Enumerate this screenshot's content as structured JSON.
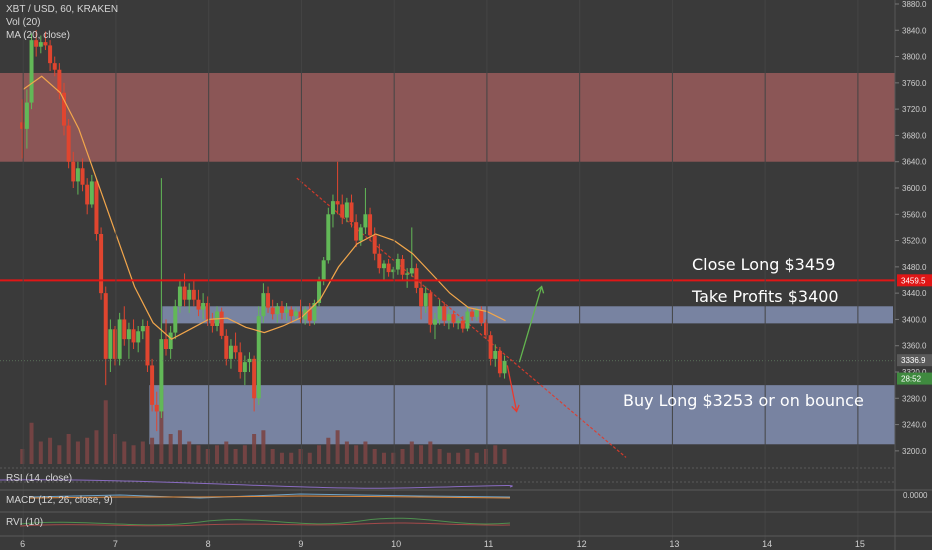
{
  "header": {
    "symbol_line": "XBT / USD, 60, KRAKEN",
    "vol_line": "Vol (20)",
    "ma_line": "MA (20, close)"
  },
  "indicators": {
    "rsi": "RSI (14, close)",
    "macd": "MACD (12, 26, close, 9)",
    "macd_value": "0.0000",
    "rvi": "RVI (10)"
  },
  "annotations": {
    "close_long": "Close Long $3459",
    "take_profits": "Take Profits $3400",
    "buy_long": "Buy Long $3253 or on bounce"
  },
  "price_tags": {
    "red_line": "3459.5",
    "last_price": "3336.9",
    "countdown": "28:52"
  },
  "colors": {
    "background": "#3a3a3a",
    "resistance_zone": "#8b5656",
    "support_zone": "#7b87a6",
    "bull": "#62b857",
    "bear": "#e0452f",
    "ma": "#f2a64b",
    "red_line": "#e01616",
    "arrow_up": "#63b54f",
    "arrow_down": "#e83a2e"
  },
  "chart_data": {
    "type": "candlestick",
    "ylim": [
      3180,
      3880
    ],
    "y_ticks": [
      "3880.0",
      "3840.0",
      "3800.0",
      "3760.0",
      "3720.0",
      "3680.0",
      "3640.0",
      "3600.0",
      "3560.0",
      "3520.0",
      "3480.0",
      "3440.0",
      "3400.0",
      "3360.0",
      "3320.0",
      "3280.0",
      "3240.0",
      "3200.0"
    ],
    "x_ticks": [
      "6",
      "7",
      "8",
      "9",
      "10",
      "11",
      "12",
      "13",
      "14",
      "15"
    ],
    "horizontal_line": 3459.5,
    "zones": [
      {
        "name": "resistance",
        "from": 3640,
        "to": 3775
      },
      {
        "name": "take-profit",
        "from": 3394,
        "to": 3420
      },
      {
        "name": "buy",
        "from": 3210,
        "to": 3300
      }
    ],
    "candles": [
      {
        "x": 5.99,
        "o": 3700,
        "h": 3735,
        "l": 3645,
        "c": 3690
      },
      {
        "x": 6.04,
        "o": 3690,
        "h": 3750,
        "l": 3660,
        "c": 3730
      },
      {
        "x": 6.09,
        "o": 3730,
        "h": 3835,
        "l": 3720,
        "c": 3825
      },
      {
        "x": 6.14,
        "o": 3825,
        "h": 3840,
        "l": 3800,
        "c": 3815
      },
      {
        "x": 6.19,
        "o": 3815,
        "h": 3832,
        "l": 3805,
        "c": 3822
      },
      {
        "x": 6.24,
        "o": 3822,
        "h": 3838,
        "l": 3810,
        "c": 3817
      },
      {
        "x": 6.29,
        "o": 3817,
        "h": 3825,
        "l": 3778,
        "c": 3790
      },
      {
        "x": 6.34,
        "o": 3790,
        "h": 3800,
        "l": 3770,
        "c": 3780
      },
      {
        "x": 6.39,
        "o": 3780,
        "h": 3790,
        "l": 3735,
        "c": 3745
      },
      {
        "x": 6.44,
        "o": 3745,
        "h": 3760,
        "l": 3680,
        "c": 3695
      },
      {
        "x": 6.49,
        "o": 3695,
        "h": 3705,
        "l": 3630,
        "c": 3640
      },
      {
        "x": 6.54,
        "o": 3640,
        "h": 3655,
        "l": 3600,
        "c": 3610
      },
      {
        "x": 6.59,
        "o": 3610,
        "h": 3640,
        "l": 3590,
        "c": 3630
      },
      {
        "x": 6.64,
        "o": 3630,
        "h": 3645,
        "l": 3595,
        "c": 3605
      },
      {
        "x": 6.69,
        "o": 3605,
        "h": 3615,
        "l": 3560,
        "c": 3575
      },
      {
        "x": 6.74,
        "o": 3575,
        "h": 3620,
        "l": 3570,
        "c": 3610
      },
      {
        "x": 6.79,
        "o": 3610,
        "h": 3615,
        "l": 3520,
        "c": 3530
      },
      {
        "x": 6.84,
        "o": 3530,
        "h": 3540,
        "l": 3430,
        "c": 3440
      },
      {
        "x": 6.89,
        "o": 3440,
        "h": 3450,
        "l": 3300,
        "c": 3340
      },
      {
        "x": 6.94,
        "o": 3340,
        "h": 3400,
        "l": 3320,
        "c": 3385
      },
      {
        "x": 6.99,
        "o": 3385,
        "h": 3390,
        "l": 3330,
        "c": 3340
      },
      {
        "x": 7.04,
        "o": 3340,
        "h": 3410,
        "l": 3330,
        "c": 3400
      },
      {
        "x": 7.09,
        "o": 3400,
        "h": 3420,
        "l": 3360,
        "c": 3370
      },
      {
        "x": 7.14,
        "o": 3370,
        "h": 3395,
        "l": 3340,
        "c": 3385
      },
      {
        "x": 7.19,
        "o": 3385,
        "h": 3400,
        "l": 3355,
        "c": 3365
      },
      {
        "x": 7.24,
        "o": 3365,
        "h": 3390,
        "l": 3350,
        "c": 3382
      },
      {
        "x": 7.29,
        "o": 3382,
        "h": 3400,
        "l": 3370,
        "c": 3390
      },
      {
        "x": 7.34,
        "o": 3390,
        "h": 3398,
        "l": 3320,
        "c": 3330
      },
      {
        "x": 7.39,
        "o": 3330,
        "h": 3340,
        "l": 3260,
        "c": 3270
      },
      {
        "x": 7.44,
        "o": 3270,
        "h": 3290,
        "l": 3230,
        "c": 3260
      },
      {
        "x": 7.49,
        "o": 3260,
        "h": 3615,
        "l": 3250,
        "c": 3370
      },
      {
        "x": 7.54,
        "o": 3370,
        "h": 3400,
        "l": 3345,
        "c": 3355
      },
      {
        "x": 7.59,
        "o": 3355,
        "h": 3390,
        "l": 3340,
        "c": 3380
      },
      {
        "x": 7.64,
        "o": 3380,
        "h": 3430,
        "l": 3370,
        "c": 3420
      },
      {
        "x": 7.69,
        "o": 3420,
        "h": 3460,
        "l": 3410,
        "c": 3450
      },
      {
        "x": 7.74,
        "o": 3450,
        "h": 3470,
        "l": 3420,
        "c": 3430
      },
      {
        "x": 7.79,
        "o": 3430,
        "h": 3455,
        "l": 3410,
        "c": 3445
      },
      {
        "x": 7.84,
        "o": 3445,
        "h": 3460,
        "l": 3420,
        "c": 3430
      },
      {
        "x": 7.89,
        "o": 3430,
        "h": 3445,
        "l": 3405,
        "c": 3415
      },
      {
        "x": 7.94,
        "o": 3415,
        "h": 3440,
        "l": 3400,
        "c": 3425
      },
      {
        "x": 7.99,
        "o": 3425,
        "h": 3435,
        "l": 3390,
        "c": 3400
      },
      {
        "x": 8.04,
        "o": 3400,
        "h": 3410,
        "l": 3380,
        "c": 3390
      },
      {
        "x": 8.09,
        "o": 3390,
        "h": 3420,
        "l": 3382,
        "c": 3412
      },
      {
        "x": 8.14,
        "o": 3412,
        "h": 3418,
        "l": 3370,
        "c": 3375
      },
      {
        "x": 8.19,
        "o": 3375,
        "h": 3385,
        "l": 3330,
        "c": 3340
      },
      {
        "x": 8.24,
        "o": 3340,
        "h": 3370,
        "l": 3325,
        "c": 3360
      },
      {
        "x": 8.29,
        "o": 3360,
        "h": 3380,
        "l": 3340,
        "c": 3350
      },
      {
        "x": 8.34,
        "o": 3350,
        "h": 3365,
        "l": 3310,
        "c": 3320
      },
      {
        "x": 8.39,
        "o": 3320,
        "h": 3345,
        "l": 3300,
        "c": 3335
      },
      {
        "x": 8.44,
        "o": 3335,
        "h": 3350,
        "l": 3320,
        "c": 3340
      },
      {
        "x": 8.49,
        "o": 3340,
        "h": 3345,
        "l": 3260,
        "c": 3280
      },
      {
        "x": 8.54,
        "o": 3280,
        "h": 3420,
        "l": 3270,
        "c": 3405
      },
      {
        "x": 8.59,
        "o": 3405,
        "h": 3455,
        "l": 3395,
        "c": 3440
      },
      {
        "x": 8.64,
        "o": 3440,
        "h": 3450,
        "l": 3410,
        "c": 3418
      },
      {
        "x": 8.69,
        "o": 3418,
        "h": 3430,
        "l": 3400,
        "c": 3408
      },
      {
        "x": 8.74,
        "o": 3408,
        "h": 3425,
        "l": 3395,
        "c": 3420
      },
      {
        "x": 8.79,
        "o": 3420,
        "h": 3428,
        "l": 3400,
        "c": 3410
      },
      {
        "x": 8.84,
        "o": 3410,
        "h": 3425,
        "l": 3398,
        "c": 3415
      },
      {
        "x": 8.89,
        "o": 3415,
        "h": 3420,
        "l": 3395,
        "c": 3405
      },
      {
        "x": 8.94,
        "o": 3405,
        "h": 3418,
        "l": 3398,
        "c": 3412
      },
      {
        "x": 8.99,
        "o": 3412,
        "h": 3430,
        "l": 3395,
        "c": 3400
      },
      {
        "x": 9.04,
        "o": 3400,
        "h": 3420,
        "l": 3392,
        "c": 3415
      },
      {
        "x": 9.09,
        "o": 3415,
        "h": 3425,
        "l": 3390,
        "c": 3398
      },
      {
        "x": 9.14,
        "o": 3398,
        "h": 3430,
        "l": 3392,
        "c": 3425
      },
      {
        "x": 9.19,
        "o": 3425,
        "h": 3465,
        "l": 3420,
        "c": 3460
      },
      {
        "x": 9.24,
        "o": 3460,
        "h": 3495,
        "l": 3452,
        "c": 3490
      },
      {
        "x": 9.29,
        "o": 3490,
        "h": 3570,
        "l": 3485,
        "c": 3560
      },
      {
        "x": 9.34,
        "o": 3560,
        "h": 3590,
        "l": 3540,
        "c": 3580
      },
      {
        "x": 9.39,
        "o": 3580,
        "h": 3640,
        "l": 3560,
        "c": 3575
      },
      {
        "x": 9.44,
        "o": 3575,
        "h": 3590,
        "l": 3545,
        "c": 3555
      },
      {
        "x": 9.49,
        "o": 3555,
        "h": 3585,
        "l": 3548,
        "c": 3578
      },
      {
        "x": 9.54,
        "o": 3578,
        "h": 3590,
        "l": 3540,
        "c": 3548
      },
      {
        "x": 9.59,
        "o": 3548,
        "h": 3560,
        "l": 3510,
        "c": 3520
      },
      {
        "x": 9.64,
        "o": 3520,
        "h": 3545,
        "l": 3512,
        "c": 3540
      },
      {
        "x": 9.69,
        "o": 3540,
        "h": 3600,
        "l": 3530,
        "c": 3560
      },
      {
        "x": 9.74,
        "o": 3560,
        "h": 3570,
        "l": 3520,
        "c": 3528
      },
      {
        "x": 9.79,
        "o": 3528,
        "h": 3540,
        "l": 3490,
        "c": 3500
      },
      {
        "x": 9.84,
        "o": 3500,
        "h": 3515,
        "l": 3470,
        "c": 3478
      },
      {
        "x": 9.89,
        "o": 3478,
        "h": 3490,
        "l": 3460,
        "c": 3485
      },
      {
        "x": 9.94,
        "o": 3485,
        "h": 3492,
        "l": 3465,
        "c": 3472
      },
      {
        "x": 9.99,
        "o": 3472,
        "h": 3480,
        "l": 3462,
        "c": 3476
      },
      {
        "x": 10.04,
        "o": 3476,
        "h": 3500,
        "l": 3468,
        "c": 3492
      },
      {
        "x": 10.09,
        "o": 3492,
        "h": 3498,
        "l": 3460,
        "c": 3468
      },
      {
        "x": 10.14,
        "o": 3468,
        "h": 3478,
        "l": 3448,
        "c": 3470
      },
      {
        "x": 10.19,
        "o": 3470,
        "h": 3540,
        "l": 3465,
        "c": 3478
      },
      {
        "x": 10.24,
        "o": 3478,
        "h": 3485,
        "l": 3440,
        "c": 3448
      },
      {
        "x": 10.29,
        "o": 3448,
        "h": 3460,
        "l": 3400,
        "c": 3420
      },
      {
        "x": 10.34,
        "o": 3420,
        "h": 3450,
        "l": 3410,
        "c": 3440
      },
      {
        "x": 10.39,
        "o": 3440,
        "h": 3445,
        "l": 3380,
        "c": 3392
      },
      {
        "x": 10.44,
        "o": 3392,
        "h": 3410,
        "l": 3370,
        "c": 3400
      },
      {
        "x": 10.49,
        "o": 3400,
        "h": 3430,
        "l": 3392,
        "c": 3420
      },
      {
        "x": 10.54,
        "o": 3420,
        "h": 3426,
        "l": 3390,
        "c": 3398
      },
      {
        "x": 10.59,
        "o": 3398,
        "h": 3415,
        "l": 3385,
        "c": 3408
      },
      {
        "x": 10.64,
        "o": 3408,
        "h": 3412,
        "l": 3388,
        "c": 3395
      },
      {
        "x": 10.69,
        "o": 3395,
        "h": 3402,
        "l": 3385,
        "c": 3398
      },
      {
        "x": 10.74,
        "o": 3398,
        "h": 3405,
        "l": 3380,
        "c": 3386
      },
      {
        "x": 10.79,
        "o": 3386,
        "h": 3420,
        "l": 3382,
        "c": 3412
      },
      {
        "x": 10.84,
        "o": 3412,
        "h": 3418,
        "l": 3398,
        "c": 3404
      },
      {
        "x": 10.89,
        "o": 3404,
        "h": 3418,
        "l": 3398,
        "c": 3415
      },
      {
        "x": 10.94,
        "o": 3415,
        "h": 3420,
        "l": 3390,
        "c": 3395
      },
      {
        "x": 10.99,
        "o": 3395,
        "h": 3400,
        "l": 3370,
        "c": 3376
      },
      {
        "x": 11.04,
        "o": 3376,
        "h": 3382,
        "l": 3330,
        "c": 3340
      },
      {
        "x": 11.09,
        "o": 3340,
        "h": 3362,
        "l": 3328,
        "c": 3352
      },
      {
        "x": 11.14,
        "o": 3352,
        "h": 3358,
        "l": 3312,
        "c": 3318
      },
      {
        "x": 11.19,
        "o": 3318,
        "h": 3345,
        "l": 3310,
        "c": 3337
      }
    ],
    "ma": [
      {
        "x": 6.0,
        "y": 3750
      },
      {
        "x": 6.2,
        "y": 3770
      },
      {
        "x": 6.4,
        "y": 3745
      },
      {
        "x": 6.6,
        "y": 3690
      },
      {
        "x": 6.8,
        "y": 3610
      },
      {
        "x": 7.0,
        "y": 3530
      },
      {
        "x": 7.2,
        "y": 3450
      },
      {
        "x": 7.4,
        "y": 3395
      },
      {
        "x": 7.6,
        "y": 3370
      },
      {
        "x": 7.8,
        "y": 3385
      },
      {
        "x": 8.0,
        "y": 3400
      },
      {
        "x": 8.2,
        "y": 3402
      },
      {
        "x": 8.4,
        "y": 3388
      },
      {
        "x": 8.6,
        "y": 3380
      },
      {
        "x": 8.8,
        "y": 3390
      },
      {
        "x": 9.0,
        "y": 3403
      },
      {
        "x": 9.2,
        "y": 3430
      },
      {
        "x": 9.4,
        "y": 3480
      },
      {
        "x": 9.6,
        "y": 3515
      },
      {
        "x": 9.8,
        "y": 3530
      },
      {
        "x": 10.0,
        "y": 3520
      },
      {
        "x": 10.2,
        "y": 3500
      },
      {
        "x": 10.4,
        "y": 3470
      },
      {
        "x": 10.6,
        "y": 3440
      },
      {
        "x": 10.8,
        "y": 3418
      },
      {
        "x": 11.0,
        "y": 3412
      },
      {
        "x": 11.2,
        "y": 3398
      }
    ],
    "trendline": [
      {
        "x": 8.95,
        "y": 3615
      },
      {
        "x": 12.5,
        "y": 3190
      }
    ],
    "arrow_down": [
      {
        "x": 11.22,
        "y": 3330
      },
      {
        "x": 11.32,
        "y": 3260
      }
    ],
    "arrow_up": [
      {
        "x": 11.35,
        "y": 3335
      },
      {
        "x": 11.59,
        "y": 3450
      }
    ],
    "volume": [
      {
        "x": 5.99,
        "v": 0.2
      },
      {
        "x": 6.09,
        "v": 0.55
      },
      {
        "x": 6.19,
        "v": 0.3
      },
      {
        "x": 6.29,
        "v": 0.35
      },
      {
        "x": 6.39,
        "v": 0.25
      },
      {
        "x": 6.49,
        "v": 0.4
      },
      {
        "x": 6.59,
        "v": 0.3
      },
      {
        "x": 6.69,
        "v": 0.35
      },
      {
        "x": 6.79,
        "v": 0.45
      },
      {
        "x": 6.89,
        "v": 0.85
      },
      {
        "x": 6.99,
        "v": 0.4
      },
      {
        "x": 7.09,
        "v": 0.3
      },
      {
        "x": 7.19,
        "v": 0.25
      },
      {
        "x": 7.29,
        "v": 0.3
      },
      {
        "x": 7.39,
        "v": 0.35
      },
      {
        "x": 7.49,
        "v": 1.0
      },
      {
        "x": 7.59,
        "v": 0.4
      },
      {
        "x": 7.69,
        "v": 0.45
      },
      {
        "x": 7.79,
        "v": 0.3
      },
      {
        "x": 7.89,
        "v": 0.25
      },
      {
        "x": 7.99,
        "v": 0.2
      },
      {
        "x": 8.09,
        "v": 0.25
      },
      {
        "x": 8.19,
        "v": 0.3
      },
      {
        "x": 8.29,
        "v": 0.2
      },
      {
        "x": 8.39,
        "v": 0.25
      },
      {
        "x": 8.49,
        "v": 0.4
      },
      {
        "x": 8.59,
        "v": 0.45
      },
      {
        "x": 8.69,
        "v": 0.2
      },
      {
        "x": 8.79,
        "v": 0.15
      },
      {
        "x": 8.89,
        "v": 0.15
      },
      {
        "x": 8.99,
        "v": 0.2
      },
      {
        "x": 9.09,
        "v": 0.15
      },
      {
        "x": 9.19,
        "v": 0.25
      },
      {
        "x": 9.29,
        "v": 0.35
      },
      {
        "x": 9.39,
        "v": 0.45
      },
      {
        "x": 9.49,
        "v": 0.3
      },
      {
        "x": 9.59,
        "v": 0.25
      },
      {
        "x": 9.69,
        "v": 0.3
      },
      {
        "x": 9.79,
        "v": 0.2
      },
      {
        "x": 9.89,
        "v": 0.15
      },
      {
        "x": 9.99,
        "v": 0.15
      },
      {
        "x": 10.09,
        "v": 0.2
      },
      {
        "x": 10.19,
        "v": 0.3
      },
      {
        "x": 10.29,
        "v": 0.25
      },
      {
        "x": 10.39,
        "v": 0.3
      },
      {
        "x": 10.49,
        "v": 0.2
      },
      {
        "x": 10.59,
        "v": 0.15
      },
      {
        "x": 10.69,
        "v": 0.15
      },
      {
        "x": 10.79,
        "v": 0.2
      },
      {
        "x": 10.89,
        "v": 0.15
      },
      {
        "x": 10.99,
        "v": 0.2
      },
      {
        "x": 11.09,
        "v": 0.25
      },
      {
        "x": 11.19,
        "v": 0.2
      }
    ]
  }
}
